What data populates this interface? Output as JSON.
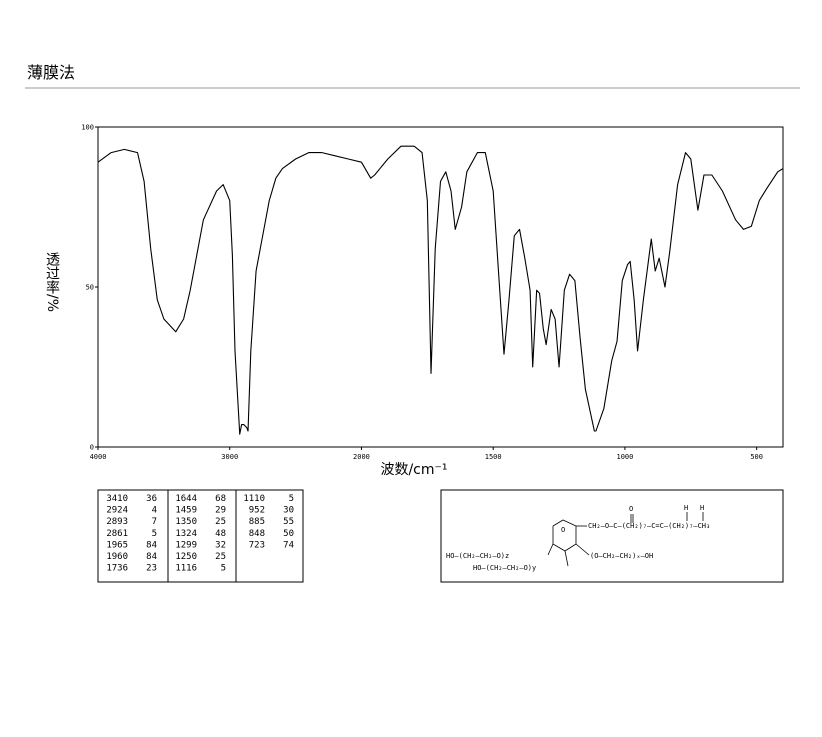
{
  "header": {
    "title": "薄膜法"
  },
  "chart_data": {
    "type": "line",
    "xlabel": "波数/cm⁻¹",
    "ylabel": "透过率/%",
    "xlim": [
      4000,
      400
    ],
    "x_break": 2000,
    "xticks": [
      4000,
      3000,
      2000,
      1500,
      1000,
      500
    ],
    "ylim": [
      0,
      100
    ],
    "yticks": [
      0,
      50,
      100
    ],
    "x": [
      4000,
      3900,
      3800,
      3700,
      3650,
      3600,
      3550,
      3500,
      3410,
      3350,
      3300,
      3200,
      3100,
      3050,
      3000,
      2980,
      2960,
      2924,
      2910,
      2893,
      2870,
      2861,
      2840,
      2800,
      2750,
      2700,
      2650,
      2600,
      2500,
      2400,
      2300,
      2200,
      2100,
      2000,
      1965,
      1950,
      1900,
      1850,
      1800,
      1770,
      1750,
      1736,
      1720,
      1700,
      1680,
      1660,
      1644,
      1620,
      1600,
      1560,
      1530,
      1500,
      1480,
      1459,
      1440,
      1420,
      1400,
      1380,
      1360,
      1350,
      1335,
      1324,
      1310,
      1299,
      1280,
      1265,
      1250,
      1230,
      1210,
      1190,
      1170,
      1150,
      1116,
      1110,
      1080,
      1050,
      1030,
      1010,
      990,
      980,
      965,
      952,
      930,
      900,
      885,
      870,
      848,
      830,
      800,
      770,
      750,
      723,
      700,
      670,
      630,
      580,
      550,
      520,
      490,
      460,
      420,
      400
    ],
    "series": [
      {
        "color": "#000000",
        "values": [
          89,
          92,
          93,
          92,
          83,
          62,
          46,
          40,
          36,
          40,
          49,
          71,
          80,
          82,
          77,
          60,
          30,
          4,
          7,
          7,
          6,
          5,
          30,
          55,
          66,
          77,
          84,
          87,
          90,
          92,
          92,
          91,
          90,
          89,
          84,
          85,
          90,
          94,
          94,
          92,
          77,
          23,
          62,
          83,
          86,
          80,
          68,
          75,
          86,
          92,
          92,
          80,
          55,
          29,
          46,
          66,
          68,
          59,
          49,
          25,
          49,
          48,
          37,
          32,
          43,
          40,
          25,
          49,
          54,
          52,
          34,
          18,
          5,
          5,
          12,
          27,
          33,
          52,
          57,
          58,
          46,
          30,
          46,
          65,
          55,
          59,
          50,
          61,
          82,
          92,
          90,
          74,
          85,
          85,
          80,
          71,
          68,
          69,
          77,
          81,
          86,
          87
        ]
      }
    ]
  },
  "peak_table": {
    "columns": [
      [
        [
          3410,
          36
        ],
        [
          2924,
          4
        ],
        [
          2893,
          7
        ],
        [
          2861,
          5
        ],
        [
          1965,
          84
        ],
        [
          1960,
          84
        ],
        [
          1736,
          23
        ]
      ],
      [
        [
          1644,
          68
        ],
        [
          1459,
          29
        ],
        [
          1350,
          25
        ],
        [
          1324,
          48
        ],
        [
          1299,
          32
        ],
        [
          1250,
          25
        ],
        [
          1116,
          5
        ]
      ],
      [
        [
          1110,
          5
        ],
        [
          952,
          30
        ],
        [
          885,
          55
        ],
        [
          848,
          50
        ],
        [
          723,
          74
        ]
      ]
    ]
  },
  "structure": {
    "labels": [
      "O",
      "CH₂—O—C—(CH₂)₇—C=C—(CH₂)₇—CH₃",
      "O",
      "H",
      "H",
      "(O—CH₂—CH₂)ₓ—OH",
      "HO—(CH₂—CH₂—O)z",
      "HO—(CH₂—CH₂—O)y"
    ]
  }
}
